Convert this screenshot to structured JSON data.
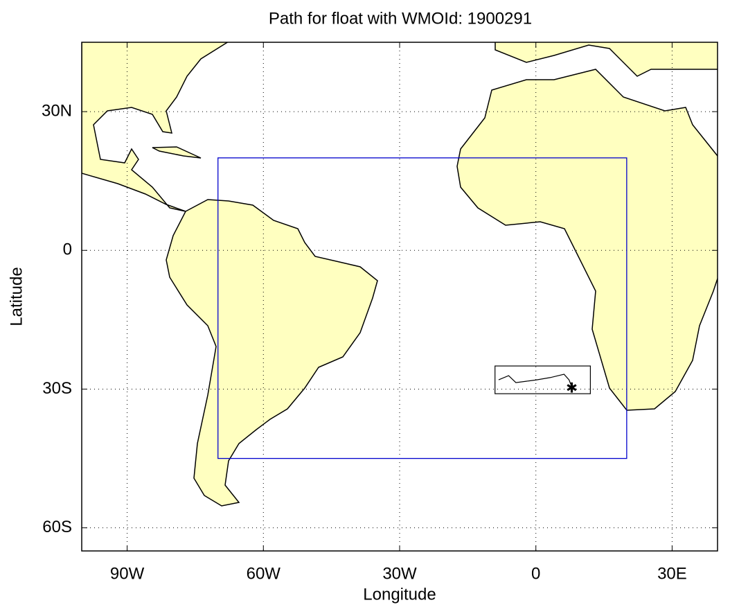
{
  "chart_data": {
    "type": "map",
    "title": "Path for float with WMOId: 1900291",
    "x_label": "Longitude",
    "y_label": "Latitude",
    "xlim": [
      -100,
      40
    ],
    "ylim": [
      -65,
      45
    ],
    "xticks": [
      {
        "value": -90,
        "label": "90W"
      },
      {
        "value": -60,
        "label": "60W"
      },
      {
        "value": -30,
        "label": "30W"
      },
      0,
      {
        "value": 30,
        "label": "30E"
      }
    ],
    "yticks": [
      {
        "value": 30,
        "label": "30N"
      },
      0,
      {
        "value": -30,
        "label": "30S"
      },
      {
        "value": -60,
        "label": "60S"
      }
    ],
    "grid": true,
    "region": {
      "lon": [
        -70,
        20
      ],
      "lat": [
        -45,
        20
      ],
      "color": "#0000cc"
    },
    "inset": {
      "lon": [
        -9,
        12
      ],
      "lat": [
        -25,
        -31
      ]
    },
    "path": {
      "lon": [
        -8.2,
        -6.0,
        -4.4,
        -2.1,
        0.2,
        3.2,
        6.2,
        7.3,
        7.9
      ],
      "lat": [
        -28.0,
        -27.1,
        -28.6,
        -28.3,
        -28.0,
        -27.5,
        -26.8,
        -28.0,
        -29.5
      ],
      "color": "#000000"
    }
  }
}
